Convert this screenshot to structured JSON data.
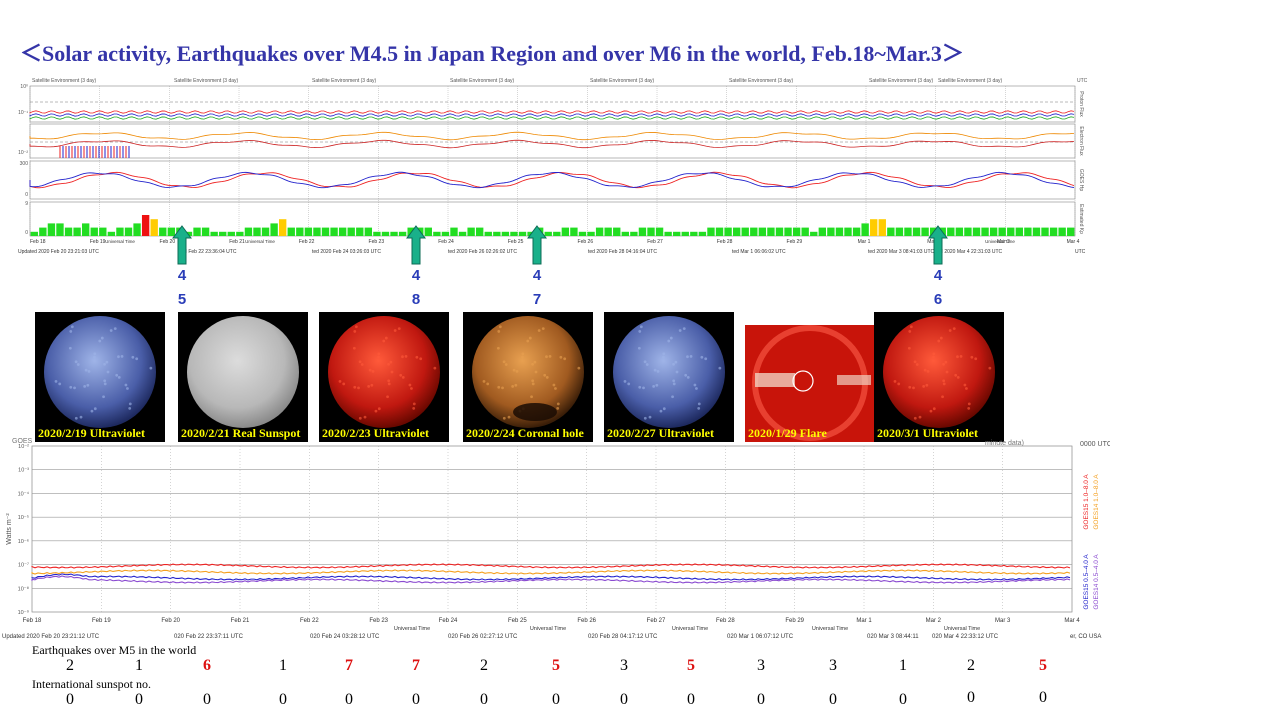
{
  "title": "＜Solar activity, Earthquakes over M4.5 in Japan Region and over M6 in the world,   Feb.18~Mar.3＞",
  "satellite_panel": {
    "header_label": "Satellite Environment (3 day)",
    "utc_label": "UTC",
    "right_labels": [
      "Proton Flux",
      "Electron Flux",
      "GOES Hp",
      "Estimated Kp"
    ],
    "y_labels": [
      "10⁰",
      "10⁻¹",
      "10⁻²",
      "300",
      "0",
      "9",
      "0"
    ],
    "dates": [
      "Feb 18",
      "Feb 19",
      "Feb 20",
      "Feb 21",
      "Feb 22",
      "Feb 23",
      "Feb 24",
      "Feb 25",
      "Feb 26",
      "Feb 27",
      "Feb 28",
      "Feb 29",
      "Mar 1",
      "Mar 2",
      "Mar 3",
      "Mar 4"
    ],
    "universal_time": "Universal Time",
    "updated": [
      "Updated 2020 Feb 20 23:21:03 UTC",
      "ted Feb 22 23:36:04 UTC",
      "ted 2020 Feb 24 03:26:03 UTC",
      "ted 2020 Feb 26 02:26:02 UTC",
      "ted 2020 Feb 28 04:16:04 UTC",
      "ted Mar  1 06:06:02 UTC",
      "ted 2020 Mar  3 08:41:03 UTC",
      "ted 2020 Mar  4 22:31:03 UTC"
    ],
    "kp_values": [
      1,
      2,
      3,
      3,
      2,
      2,
      3,
      2,
      2,
      1,
      2,
      2,
      3,
      5,
      4,
      2,
      2,
      2,
      1,
      2,
      2,
      1,
      1,
      1,
      1,
      2,
      2,
      2,
      3,
      4,
      2,
      2,
      2,
      2,
      2,
      2,
      2,
      2,
      2,
      2,
      1,
      1,
      1,
      1,
      2,
      2,
      2,
      1,
      1,
      2,
      1,
      2,
      2,
      1,
      1,
      1,
      1,
      1,
      1,
      2,
      1,
      1,
      2,
      2,
      1,
      1,
      2,
      2,
      2,
      1,
      1,
      2,
      2,
      2,
      1,
      1,
      1,
      1,
      1,
      2,
      2,
      2,
      2,
      2,
      2,
      2,
      2,
      2,
      2,
      2,
      2,
      1,
      2,
      2,
      2,
      2,
      2,
      3,
      4,
      4,
      2,
      2,
      2,
      2,
      2,
      2,
      2,
      2,
      2,
      2,
      2,
      2,
      2,
      2,
      2,
      2,
      2,
      2,
      2,
      2,
      2,
      2
    ],
    "kp_colors": {
      "quiet": "#22dd22",
      "active": "#ffcc00",
      "storm": "#ee1111"
    }
  },
  "arrows_top": [
    {
      "top": "4",
      "bottom": "5"
    },
    {
      "top": "4",
      "bottom": "8"
    },
    {
      "top": "4",
      "bottom": "7"
    },
    {
      "top": "4",
      "bottom": "6"
    }
  ],
  "sun_images": [
    {
      "caption": "2020/2/19 Ultraviolet",
      "style": "uv-blue"
    },
    {
      "caption": "2020/2/21 Real Sunspot",
      "style": "white-light"
    },
    {
      "caption": "2020/2/23 Ultraviolet",
      "style": "uv-red"
    },
    {
      "caption": "2020/2/24 Coronal hole",
      "style": "coronal"
    },
    {
      "caption": "2020/2/27 Ultraviolet",
      "style": "uv-blue"
    },
    {
      "caption": "2020/1/29 Flare",
      "style": "flare"
    },
    {
      "caption": "2020/3/1 Ultraviolet",
      "style": "uv-red"
    }
  ],
  "red_arrow": {
    "top": "6",
    "bottom": "0"
  },
  "goes_panel": {
    "header_prefix": "GOES",
    "header_suffix": "minute data)",
    "utc_label": "0000 UTC",
    "ylabel": "Watts m⁻²",
    "y_labels": [
      "10⁻²",
      "10⁻³",
      "10⁻⁴",
      "10⁻⁵",
      "10⁻⁶",
      "10⁻⁷",
      "10⁻⁸",
      "10⁻⁹"
    ],
    "legend": [
      "GOES15 1.0–8.0 A",
      "GOES14 1.0–8.0 A",
      "GOES15 0.5–4.0 A",
      "GOES14 0.5–4.0 A"
    ],
    "dates": [
      "Feb 18",
      "Feb 19",
      "Feb 20",
      "Feb 21",
      "Feb 22",
      "Feb 23",
      "Feb 24",
      "Feb 25",
      "Feb 26",
      "Feb 27",
      "Feb 28",
      "Feb 29",
      "Mar 1",
      "Mar 2",
      "Mar 3",
      "Mar 4"
    ],
    "universal_time": "Universal Time",
    "updated": [
      "Updated 2020 Feb 20 23:21:12 UTC",
      "020 Feb 22 23:37:11 UTC",
      "020 Feb 24 03:28:12 UTC",
      "020 Feb 26 02:27:12 UTC",
      "020 Feb 28 04:17:12 UTC",
      "020 Mar  1 06:07:12 UTC",
      "020 Mar  3 08:44:11",
      "020 Mar  4 22:33:12 UTC",
      "er, CO USA"
    ]
  },
  "earthquakes": {
    "label": "Earthquakes over M5 in the world",
    "values": [
      "2",
      "1",
      "6",
      "1",
      "7",
      "7",
      "2",
      "5",
      "3",
      "5",
      "3",
      "3",
      "1",
      "2",
      "5"
    ],
    "highlight": [
      false,
      false,
      true,
      false,
      true,
      true,
      false,
      true,
      false,
      true,
      false,
      false,
      false,
      false,
      true
    ]
  },
  "sunspots": {
    "label": "International sunspot no.",
    "values": [
      "0",
      "0",
      "0",
      "0",
      "0",
      "0",
      "0",
      "0",
      "0",
      "0",
      "0",
      "0",
      "0",
      "0",
      "0"
    ]
  },
  "colors": {
    "title": "#3535a8",
    "arrow_green": "#19b08a",
    "arrow_red": "#ee1111",
    "number_blue": "#2a3db8",
    "highlight_red": "#dd1111"
  }
}
